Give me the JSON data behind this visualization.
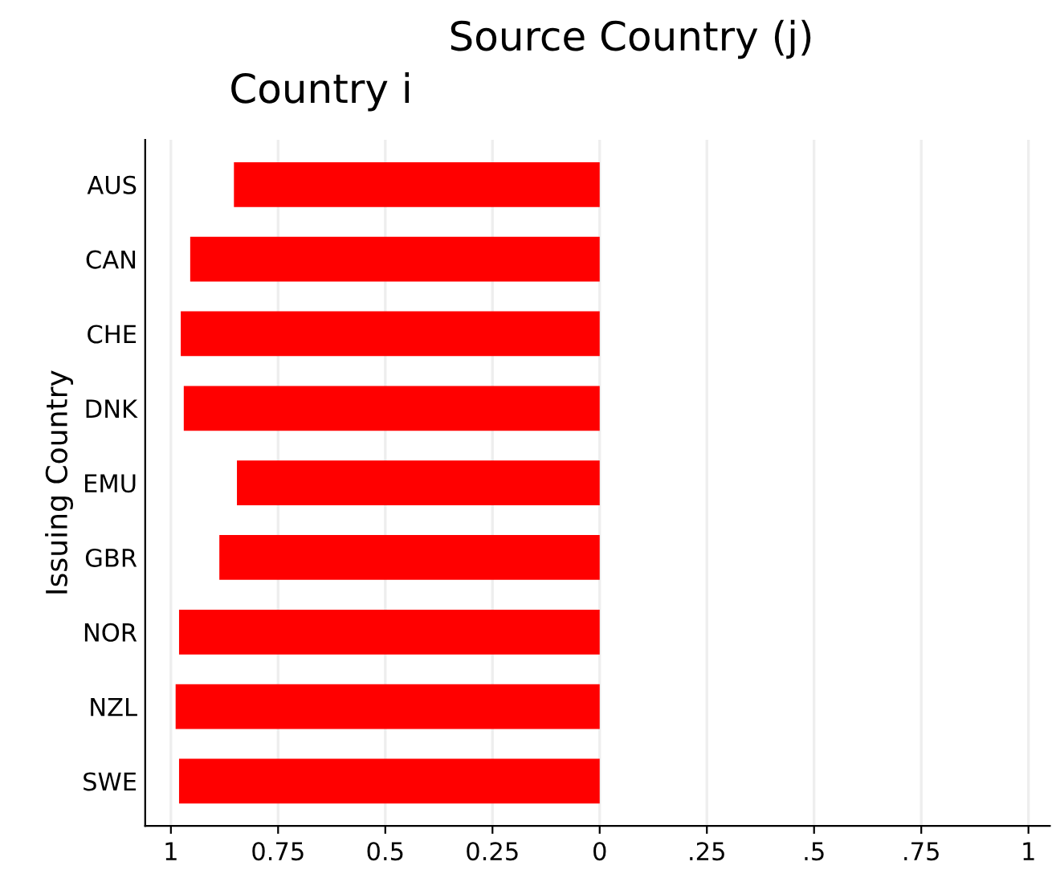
{
  "chart_data": {
    "type": "bar",
    "orientation": "horizontal",
    "title": "Source Country (j)",
    "subtitle": "Country i",
    "ylabel": "Issuing Country",
    "categories": [
      "AUS",
      "CAN",
      "CHE",
      "DNK",
      "EMU",
      "GBR",
      "NOR",
      "NZL",
      "SWE"
    ],
    "values": [
      -0.853,
      -0.955,
      -0.977,
      -0.97,
      -0.846,
      -0.887,
      -0.981,
      -0.989,
      -0.981
    ],
    "color": "#ff0000",
    "xlim": [
      -1.06,
      1.05
    ],
    "xticks": [
      {
        "value": -1,
        "label": "1"
      },
      {
        "value": -0.75,
        "label": "0.75"
      },
      {
        "value": -0.5,
        "label": "0.5"
      },
      {
        "value": -0.25,
        "label": "0.25"
      },
      0,
      {
        "value": 0.25,
        "label": ".25"
      },
      {
        "value": 0.5,
        "label": ".5"
      },
      {
        "value": 0.75,
        "label": ".75"
      },
      1
    ],
    "grid": "x"
  }
}
